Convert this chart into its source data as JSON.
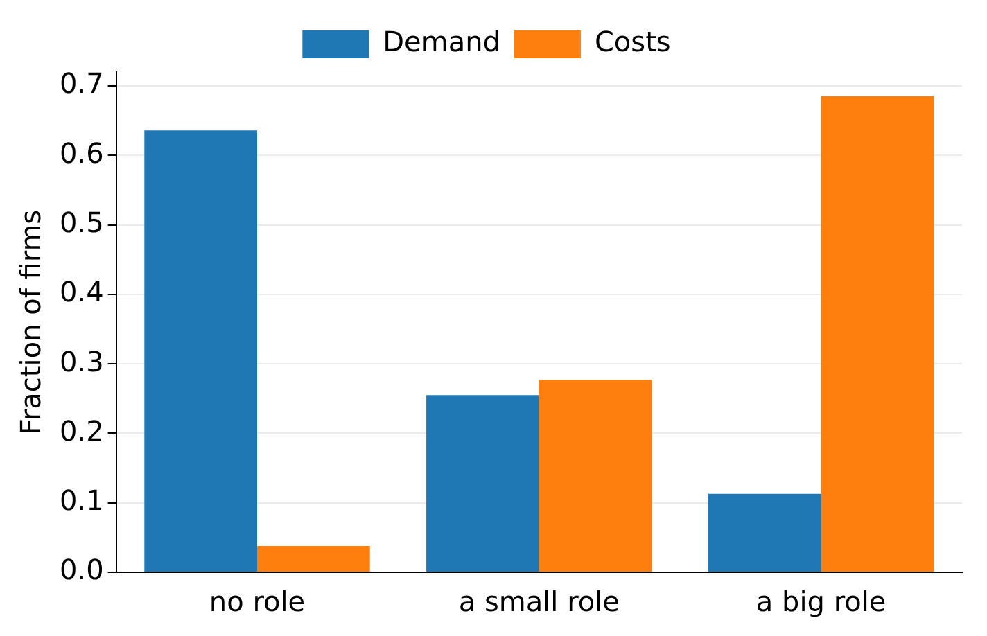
{
  "chart_data": {
    "type": "bar",
    "ylabel": "Fraction of firms",
    "categories": [
      "no role",
      "a small role",
      "a big role"
    ],
    "series": [
      {
        "name": "Demand",
        "color": "#1f77b4",
        "values": [
          0.636,
          0.255,
          0.113
        ]
      },
      {
        "name": "Costs",
        "color": "#ff7f0e",
        "values": [
          0.038,
          0.277,
          0.685
        ]
      }
    ],
    "ylim": [
      0,
      0.72
    ],
    "yticks": [
      {
        "value": 0,
        "label": "0.0"
      },
      0.1,
      0.2,
      0.3,
      0.4,
      0.5,
      0.6,
      0.7
    ],
    "grid": "y",
    "legend": "top"
  }
}
